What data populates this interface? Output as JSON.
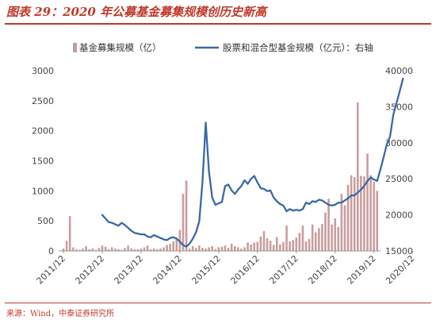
{
  "title": "图表 29：2020 年公募基金募集规模创历史新高",
  "source": "来源：Wind，中泰证券研究所",
  "chart_data": {
    "type": "bar+line",
    "title": "图表 29：2020 年公募基金募集规模创历史新高",
    "x_tick_labels": [
      "2011/12",
      "2012/12",
      "2013/12",
      "2014/12",
      "2015/12",
      "2016/12",
      "2017/12",
      "2018/12",
      "2019/12",
      "2020/12"
    ],
    "x_start_month": "2011-12",
    "left_axis": {
      "ylim": [
        0,
        3000
      ],
      "ticks": [
        0,
        500,
        1000,
        1500,
        2000,
        2500,
        3000
      ]
    },
    "right_axis": {
      "ylim": [
        15000,
        40000
      ],
      "ticks": [
        15000,
        20000,
        25000,
        30000,
        35000,
        40000
      ]
    },
    "legend": "top",
    "grid": false,
    "colors": {
      "bar": "#c99d9d",
      "line": "#3a68a8",
      "accent": "#c0392b"
    },
    "series": [
      {
        "name": "基金募集规模（亿）",
        "type": "bar",
        "axis": "left",
        "start": "2011-12",
        "values": [
          40,
          170,
          580,
          60,
          30,
          20,
          40,
          80,
          30,
          40,
          20,
          50,
          90,
          70,
          30,
          60,
          40,
          30,
          20,
          50,
          90,
          40,
          30,
          30,
          40,
          60,
          90,
          30,
          40,
          30,
          40,
          60,
          100,
          120,
          160,
          220,
          350,
          950,
          1170,
          40,
          80,
          50,
          90,
          50,
          40,
          60,
          80,
          30,
          60,
          70,
          90,
          50,
          120,
          80,
          60,
          40,
          60,
          140,
          110,
          140,
          150,
          240,
          330,
          210,
          170,
          100,
          230,
          110,
          150,
          420,
          160,
          180,
          220,
          300,
          420,
          160,
          200,
          440,
          310,
          380,
          450,
          640,
          870,
          440,
          540,
          400,
          950,
          760,
          1100,
          1260,
          1230,
          2470,
          1250,
          1240,
          1620,
          1260,
          1150,
          1000
        ]
      },
      {
        "name": "股票和混合型基金规模（亿元）：右轴",
        "type": "line",
        "axis": "right",
        "start": "2012-12",
        "values": [
          20000,
          19500,
          19000,
          18900,
          18700,
          18500,
          18900,
          18600,
          18200,
          17800,
          17500,
          17400,
          17300,
          17300,
          17000,
          16900,
          17200,
          17000,
          16800,
          16600,
          16500,
          16800,
          16900,
          16700,
          16300,
          15800,
          15600,
          16000,
          16700,
          17600,
          19100,
          24600,
          32800,
          26000,
          22400,
          21400,
          21600,
          21800,
          24000,
          24200,
          23400,
          22900,
          23500,
          24000,
          24800,
          24300,
          25000,
          25400,
          24500,
          23700,
          23600,
          23300,
          23400,
          22400,
          21900,
          21500,
          21300,
          20500,
          20800,
          20600,
          20700,
          20600,
          20800,
          21700,
          21500,
          21900,
          21800,
          22100,
          22000,
          21700,
          21400,
          21300,
          21400,
          21700,
          21700,
          22000,
          22300,
          22700,
          22700,
          23100,
          23500,
          24000,
          24700,
          25200,
          24900,
          24700,
          26300,
          28000,
          29800,
          30900,
          33900,
          35500,
          37200,
          38900
        ]
      }
    ]
  }
}
